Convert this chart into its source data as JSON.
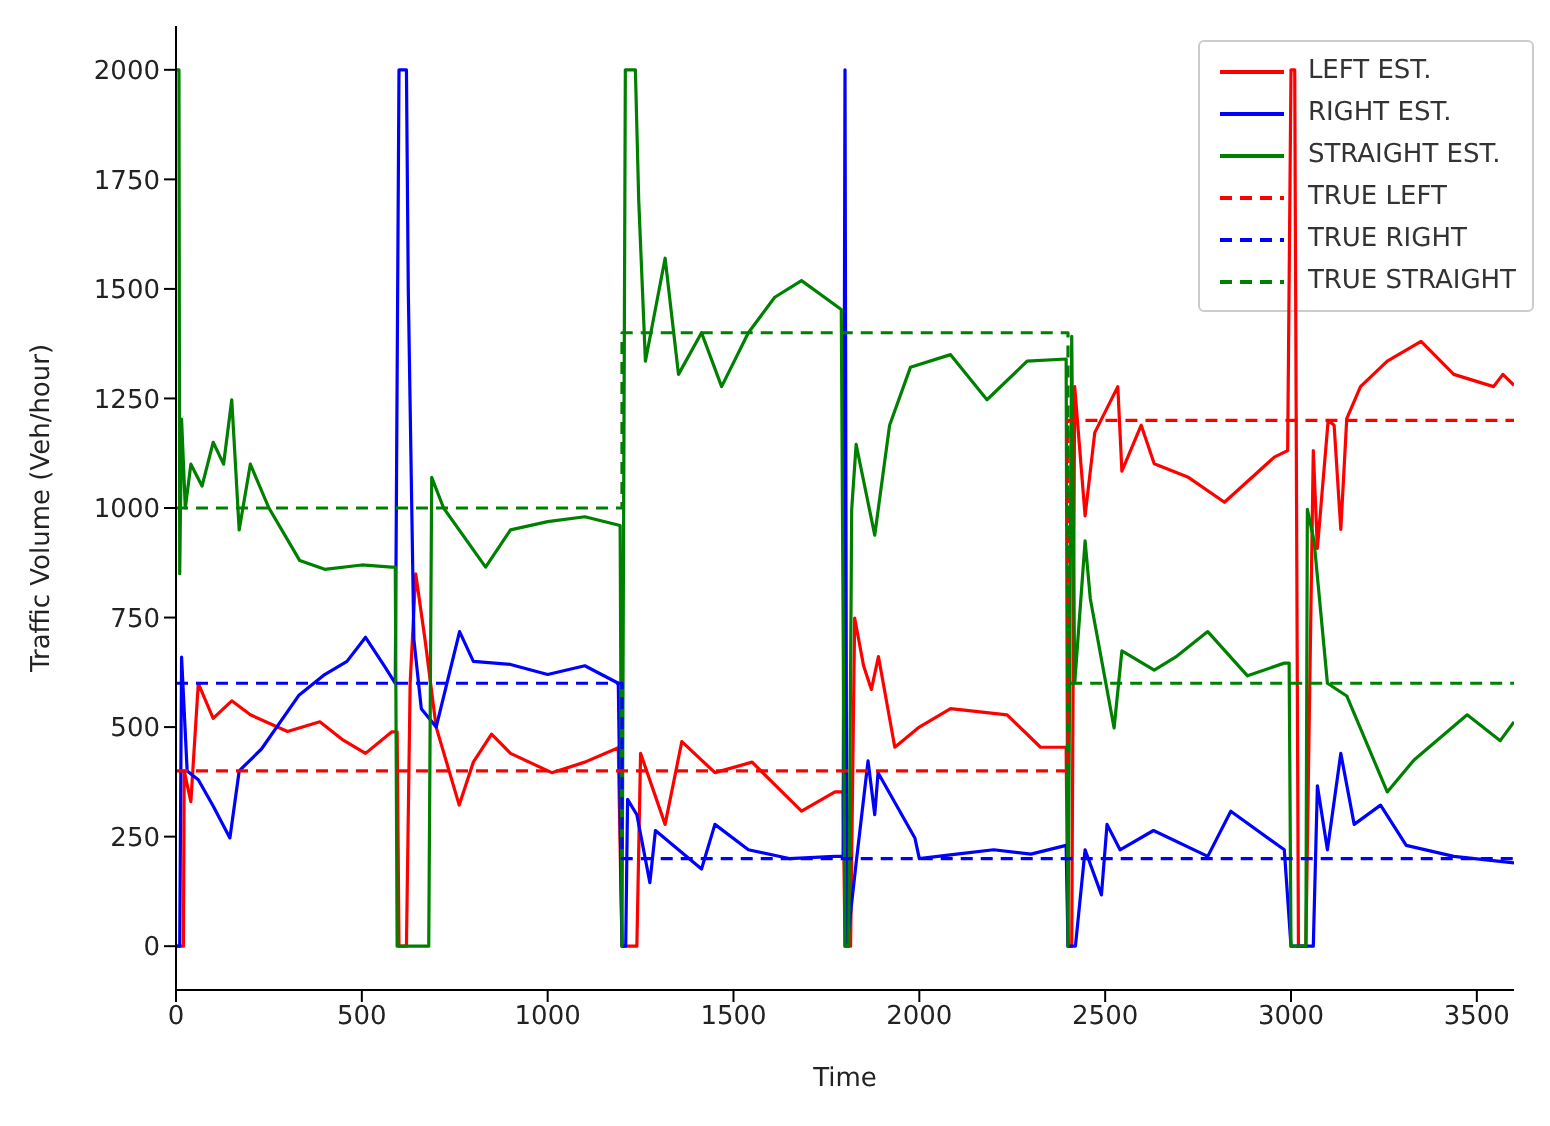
{
  "chart_data": {
    "type": "line",
    "xlabel": "Time",
    "ylabel": "Traffic Volume (Veh/hour)",
    "xlim": [
      0,
      3600
    ],
    "xticks": [
      0,
      500,
      1000,
      1500,
      2000,
      2500,
      3000,
      3500
    ],
    "ylim": [
      -100,
      2100
    ],
    "yticks": [
      0,
      250,
      500,
      750,
      1000,
      1250,
      1500,
      1750,
      2000
    ],
    "legend": "top right",
    "line_style": "solid",
    "series": [
      {
        "name": "LEFT EST.",
        "color": "#ff0000",
        "x": [
          0,
          20,
          22,
          40,
          60,
          100,
          150,
          200,
          300,
          387,
          450,
          510,
          580,
          595,
          600,
          620,
          630,
          645,
          670,
          700,
          762,
          800,
          849,
          900,
          1011,
          1100,
          1190,
          1200,
          1240,
          1250,
          1316,
          1361,
          1450,
          1550,
          1683,
          1773,
          1795,
          1800,
          1815,
          1826,
          1850,
          1871,
          1890,
          1934,
          2000,
          2084,
          2236,
          2326,
          2395,
          2400,
          2410,
          2418,
          2446,
          2472,
          2534,
          2545,
          2597,
          2632,
          2722,
          2821,
          2955,
          2991,
          3000,
          3010,
          3020,
          3040,
          3060,
          3071,
          3100,
          3116,
          3134,
          3150,
          3187,
          3259,
          3350,
          3438,
          3545,
          3570,
          3600
        ],
        "values": [
          0,
          0,
          400,
          330,
          600,
          520,
          560,
          528,
          490,
          512,
          470,
          440,
          489,
          489,
          0,
          0,
          600,
          850,
          700,
          500,
          322,
          420,
          484,
          440,
          396,
          420,
          453,
          0,
          0,
          440,
          278,
          467,
          396,
          420,
          308,
          352,
          352,
          0,
          0,
          749,
          640,
          586,
          661,
          454,
          500,
          542,
          528,
          454,
          454,
          0,
          0,
          1277,
          982,
          1172,
          1277,
          1084,
          1189,
          1101,
          1071,
          1013,
          1116,
          1131,
          2000,
          2000,
          0,
          0,
          1131,
          908,
          1200,
          1189,
          951,
          1204,
          1277,
          1335,
          1380,
          1305,
          1277,
          1305,
          1280
        ]
      },
      {
        "name": "RIGHT EST.",
        "color": "#0000ff",
        "x": [
          0,
          10,
          15,
          30,
          60,
          100,
          145,
          170,
          230,
          330,
          400,
          460,
          510,
          560,
          590,
          600,
          620,
          625,
          640,
          660,
          700,
          763,
          800,
          900,
          1000,
          1100,
          1190,
          1200,
          1210,
          1215,
          1240,
          1275,
          1290,
          1414,
          1450,
          1540,
          1650,
          1773,
          1795,
          1800,
          1805,
          1830,
          1862,
          1880,
          1889,
          1988,
          2000,
          2100,
          2200,
          2300,
          2395,
          2400,
          2420,
          2446,
          2490,
          2505,
          2540,
          2630,
          2776,
          2838,
          2982,
          3000,
          3060,
          3071,
          3098,
          3134,
          3170,
          3241,
          3310,
          3438,
          3600
        ],
        "values": [
          0,
          0,
          660,
          400,
          380,
          320,
          247,
          400,
          450,
          572,
          620,
          650,
          705,
          640,
          600,
          2000,
          2000,
          1497,
          700,
          542,
          500,
          718,
          650,
          643,
          620,
          640,
          600,
          0,
          0,
          335,
          300,
          145,
          264,
          176,
          278,
          220,
          200,
          205,
          205,
          2000,
          0,
          190,
          423,
          300,
          396,
          247,
          200,
          210,
          220,
          210,
          230,
          0,
          0,
          220,
          117,
          278,
          220,
          264,
          205,
          308,
          220,
          0,
          0,
          366,
          220,
          440,
          278,
          322,
          230,
          205,
          190
        ]
      },
      {
        "name": "STRAIGHT EST.",
        "color": "#008000",
        "x": [
          0,
          8,
          10,
          15,
          25,
          40,
          70,
          100,
          128,
          150,
          170,
          200,
          250,
          333,
          400,
          500,
          580,
          590,
          595,
          680,
          688,
          720,
          833,
          900,
          1000,
          1100,
          1195,
          1200,
          1209,
          1236,
          1245,
          1263,
          1316,
          1352,
          1414,
          1468,
          1540,
          1611,
          1683,
          1790,
          1800,
          1810,
          1818,
          1830,
          1880,
          1920,
          1976,
          2084,
          2182,
          2290,
          2395,
          2400,
          2410,
          2418,
          2446,
          2460,
          2524,
          2545,
          2632,
          2690,
          2776,
          2883,
          2982,
          2995,
          3000,
          3040,
          3044,
          3062,
          3098,
          3150,
          3259,
          3331,
          3474,
          3563,
          3600
        ],
        "values": [
          2000,
          2000,
          850,
          1203,
          1000,
          1100,
          1050,
          1150,
          1100,
          1247,
          950,
          1100,
          1000,
          880,
          860,
          870,
          865,
          865,
          0,
          0,
          1070,
          1000,
          865,
          950,
          969,
          980,
          960,
          0,
          2000,
          2000,
          1702,
          1335,
          1570,
          1305,
          1400,
          1277,
          1400,
          1481,
          1519,
          1453,
          0,
          0,
          997,
          1145,
          938,
          1189,
          1321,
          1350,
          1247,
          1335,
          1340,
          0,
          1392,
          600,
          925,
          793,
          498,
          674,
          630,
          660,
          718,
          617,
          646,
          646,
          0,
          0,
          997,
          925,
          600,
          571,
          352,
          425,
          528,
          469,
          512
        ]
      },
      {
        "name": "TRUE LEFT",
        "color": "#ff0000",
        "line_style": "dashed",
        "x": [
          0,
          2400,
          2400,
          3600
        ],
        "values": [
          400,
          400,
          1200,
          1200
        ]
      },
      {
        "name": "TRUE RIGHT",
        "color": "#0000ff",
        "line_style": "dashed",
        "x": [
          0,
          1200,
          1200,
          3600
        ],
        "values": [
          600,
          600,
          200,
          200
        ]
      },
      {
        "name": "TRUE STRAIGHT",
        "color": "#008000",
        "line_style": "dashed",
        "x": [
          0,
          1200,
          1200,
          2400,
          2400,
          3600
        ],
        "values": [
          1000,
          1000,
          1400,
          1400,
          600,
          600
        ]
      }
    ]
  }
}
